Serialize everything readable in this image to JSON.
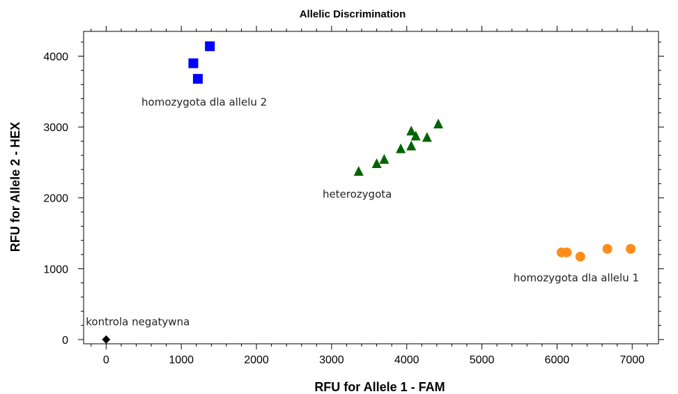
{
  "chart_data": {
    "type": "scatter",
    "title": "Allelic Discrimination",
    "xlabel": "RFU for Allele 1 - FAM",
    "ylabel": "RFU for Allele 2 - HEX",
    "xlim": [
      -300,
      7350
    ],
    "ylim": [
      -60,
      4350
    ],
    "xticks": [
      0,
      1000,
      2000,
      3000,
      4000,
      5000,
      6000,
      7000
    ],
    "yticks": [
      0,
      1000,
      2000,
      3000,
      4000
    ],
    "grid": false,
    "series": [
      {
        "color": "#0000ff",
        "marker": "square",
        "points": [
          [
            1160,
            3900
          ],
          [
            1220,
            3680
          ],
          [
            1380,
            4140
          ]
        ]
      },
      {
        "color": "#006400",
        "marker": "triangle",
        "points": [
          [
            3360,
            2370
          ],
          [
            3600,
            2480
          ],
          [
            3700,
            2540
          ],
          [
            3920,
            2690
          ],
          [
            4060,
            2940
          ],
          [
            4060,
            2730
          ],
          [
            4120,
            2870
          ],
          [
            4270,
            2850
          ],
          [
            4420,
            3040
          ]
        ]
      },
      {
        "color": "#ff8c1a",
        "marker": "circle",
        "points": [
          [
            6060,
            1230
          ],
          [
            6130,
            1230
          ],
          [
            6310,
            1170
          ],
          [
            6670,
            1280
          ],
          [
            6980,
            1280
          ]
        ]
      },
      {
        "color": "#000000",
        "marker": "diamond",
        "points": [
          [
            0,
            0
          ]
        ]
      }
    ],
    "annotations": [
      {
        "text": "homozygota dla allelu 2",
        "x": 470,
        "y": 3300
      },
      {
        "text": "heterozygota",
        "x": 2880,
        "y": 2000
      },
      {
        "text": "homozygota dla allelu 1",
        "x": 5420,
        "y": 820
      },
      {
        "text": "kontrola negatywna",
        "x": -270,
        "y": 200
      }
    ]
  }
}
